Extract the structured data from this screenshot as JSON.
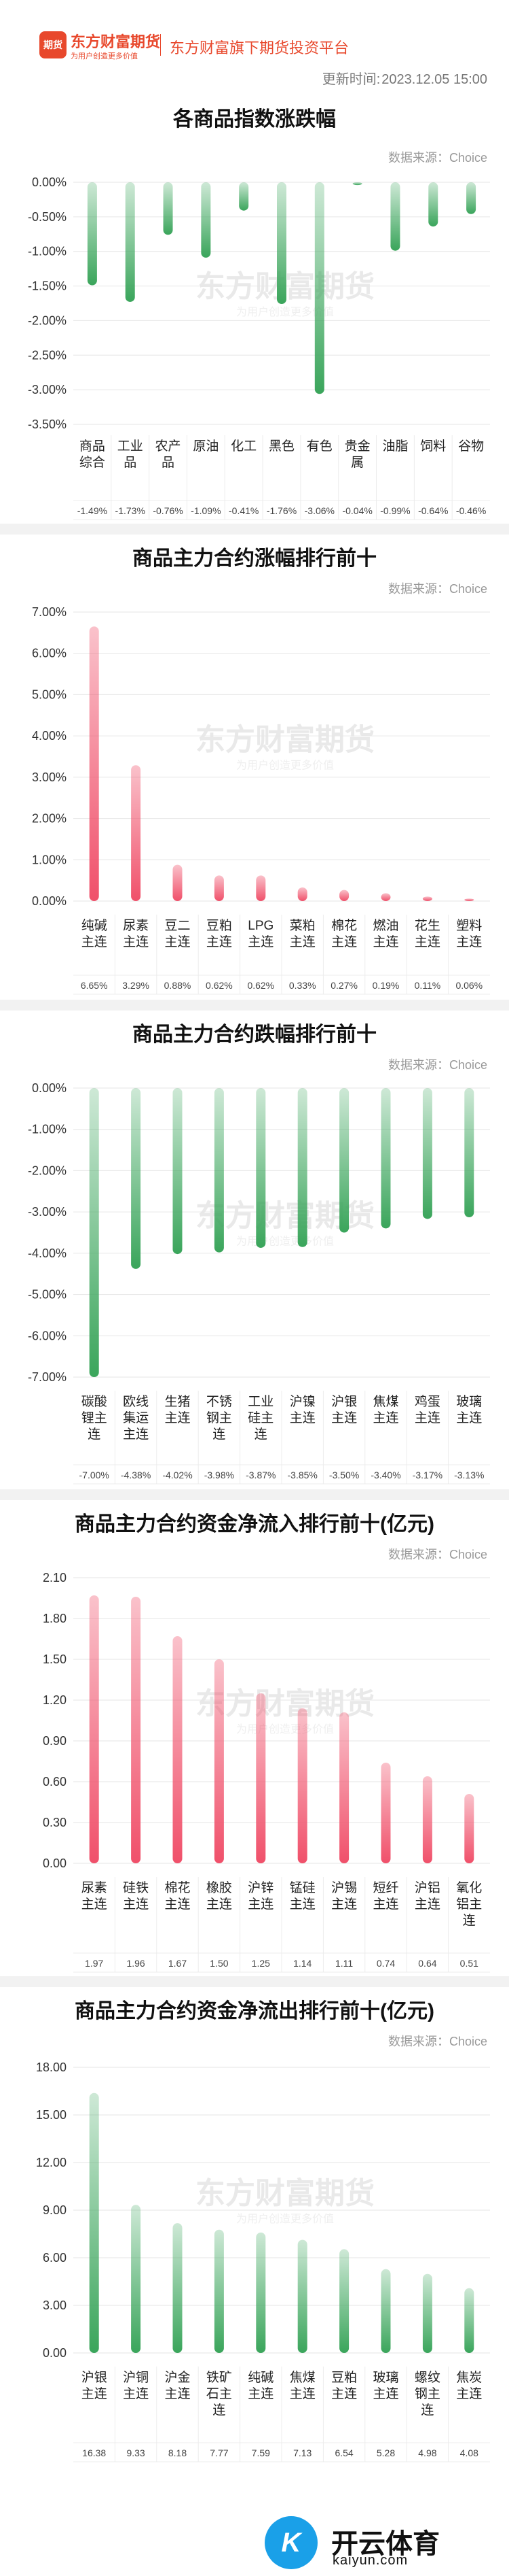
{
  "header": {
    "logo_badge": "期货",
    "logo_text": "东方财富期货",
    "logo_sub": "为用户创造更多价值",
    "platform": "东方财富旗下期货投资平台",
    "updated_label": "更新时间:",
    "updated_time": "2023.12.05 15:00"
  },
  "watermark": {
    "main": "东方财富期货",
    "sub": "为用户创造更多价值"
  },
  "colors": {
    "up": "#f0506a",
    "down": "#3aa55b",
    "brand": "#e8482c"
  },
  "footer": {
    "logo_mark": "K",
    "name": "开云体育",
    "url": "kaiyun.com"
  },
  "chart_data": [
    {
      "type": "bar",
      "title": "各商品指数涨跌幅",
      "source": "数据来源：Choice",
      "categories": [
        [
          "商品",
          "综合"
        ],
        [
          "工业",
          "品"
        ],
        [
          "农产",
          "品"
        ],
        [
          "原油"
        ],
        [
          "化工"
        ],
        [
          "黑色"
        ],
        [
          "有色"
        ],
        [
          "贵金",
          "属"
        ],
        [
          "油脂"
        ],
        [
          "饲料"
        ],
        [
          "谷物"
        ]
      ],
      "values": [
        -1.49,
        -1.73,
        -0.76,
        -1.09,
        -0.41,
        -1.76,
        -3.06,
        -0.04,
        -0.99,
        -0.64,
        -0.46
      ],
      "value_labels": [
        "-1.49%",
        "-1.73%",
        "-0.76%",
        "-1.09%",
        "-0.41%",
        "-1.76%",
        "-3.06%",
        "-0.04%",
        "-0.99%",
        "-0.64%",
        "-0.46%"
      ],
      "yticks": [
        "0.00%",
        "-0.50%",
        "-1.00%",
        "-1.50%",
        "-2.00%",
        "-2.50%",
        "-3.00%",
        "-3.50%"
      ],
      "ylim": [
        -3.5,
        0
      ],
      "color": "down"
    },
    {
      "type": "bar",
      "title": "商品主力合约涨幅排行前十",
      "source": "数据来源：Choice",
      "categories": [
        [
          "纯碱",
          "主连"
        ],
        [
          "尿素",
          "主连"
        ],
        [
          "豆二",
          "主连"
        ],
        [
          "豆粕",
          "主连"
        ],
        [
          "LPG",
          "主连"
        ],
        [
          "菜粕",
          "主连"
        ],
        [
          "棉花",
          "主连"
        ],
        [
          "燃油",
          "主连"
        ],
        [
          "花生",
          "主连"
        ],
        [
          "塑料",
          "主连"
        ]
      ],
      "values": [
        6.65,
        3.29,
        0.88,
        0.62,
        0.62,
        0.33,
        0.27,
        0.19,
        0.11,
        0.06
      ],
      "value_labels": [
        "6.65%",
        "3.29%",
        "0.88%",
        "0.62%",
        "0.62%",
        "0.33%",
        "0.27%",
        "0.19%",
        "0.11%",
        "0.06%"
      ],
      "yticks": [
        "7.00%",
        "6.00%",
        "5.00%",
        "4.00%",
        "3.00%",
        "2.00%",
        "1.00%",
        "0.00%"
      ],
      "ylim": [
        0,
        7
      ],
      "color": "up"
    },
    {
      "type": "bar",
      "title": "商品主力合约跌幅排行前十",
      "source": "数据来源：Choice",
      "categories": [
        [
          "碳酸",
          "锂主",
          "连"
        ],
        [
          "欧线",
          "集运",
          "主连"
        ],
        [
          "生猪",
          "主连"
        ],
        [
          "不锈",
          "钢主",
          "连"
        ],
        [
          "工业",
          "硅主",
          "连"
        ],
        [
          "沪镍",
          "主连"
        ],
        [
          "沪银",
          "主连"
        ],
        [
          "焦煤",
          "主连"
        ],
        [
          "鸡蛋",
          "主连"
        ],
        [
          "玻璃",
          "主连"
        ]
      ],
      "values": [
        -7.0,
        -4.38,
        -4.02,
        -3.98,
        -3.87,
        -3.85,
        -3.5,
        -3.4,
        -3.17,
        -3.13
      ],
      "value_labels": [
        "-7.00%",
        "-4.38%",
        "-4.02%",
        "-3.98%",
        "-3.87%",
        "-3.85%",
        "-3.50%",
        "-3.40%",
        "-3.17%",
        "-3.13%"
      ],
      "yticks": [
        "0.00%",
        "-1.00%",
        "-2.00%",
        "-3.00%",
        "-4.00%",
        "-5.00%",
        "-6.00%",
        "-7.00%"
      ],
      "ylim": [
        -7,
        0
      ],
      "color": "down"
    },
    {
      "type": "bar",
      "title": "商品主力合约资金净流入排行前十(亿元)",
      "source": "数据来源：Choice",
      "categories": [
        [
          "尿素",
          "主连"
        ],
        [
          "硅铁",
          "主连"
        ],
        [
          "棉花",
          "主连"
        ],
        [
          "橡胶",
          "主连"
        ],
        [
          "沪锌",
          "主连"
        ],
        [
          "锰硅",
          "主连"
        ],
        [
          "沪锡",
          "主连"
        ],
        [
          "短纤",
          "主连"
        ],
        [
          "沪铝",
          "主连"
        ],
        [
          "氧化",
          "铝主",
          "连"
        ]
      ],
      "values": [
        1.97,
        1.96,
        1.67,
        1.5,
        1.25,
        1.14,
        1.11,
        0.74,
        0.64,
        0.51
      ],
      "value_labels": [
        "1.97",
        "1.96",
        "1.67",
        "1.50",
        "1.25",
        "1.14",
        "1.11",
        "0.74",
        "0.64",
        "0.51"
      ],
      "yticks": [
        "2.10",
        "1.80",
        "1.50",
        "1.20",
        "0.90",
        "0.60",
        "0.30",
        "0.00"
      ],
      "ylim": [
        0,
        2.1
      ],
      "color": "up"
    },
    {
      "type": "bar",
      "title": "商品主力合约资金净流出排行前十(亿元)",
      "source": "数据来源：Choice",
      "categories": [
        [
          "沪银",
          "主连"
        ],
        [
          "沪铜",
          "主连"
        ],
        [
          "沪金",
          "主连"
        ],
        [
          "铁矿",
          "石主",
          "连"
        ],
        [
          "纯碱",
          "主连"
        ],
        [
          "焦煤",
          "主连"
        ],
        [
          "豆粕",
          "主连"
        ],
        [
          "玻璃",
          "主连"
        ],
        [
          "螺纹",
          "钢主",
          "连"
        ],
        [
          "焦炭",
          "主连"
        ]
      ],
      "values": [
        16.38,
        9.33,
        8.18,
        7.77,
        7.59,
        7.13,
        6.54,
        5.28,
        4.98,
        4.08
      ],
      "value_labels": [
        "16.38",
        "9.33",
        "8.18",
        "7.77",
        "7.59",
        "7.13",
        "6.54",
        "5.28",
        "4.98",
        "4.08"
      ],
      "yticks": [
        "18.00",
        "15.00",
        "12.00",
        "9.00",
        "6.00",
        "3.00",
        "0.00"
      ],
      "ylim": [
        0,
        18
      ],
      "color": "down"
    }
  ]
}
